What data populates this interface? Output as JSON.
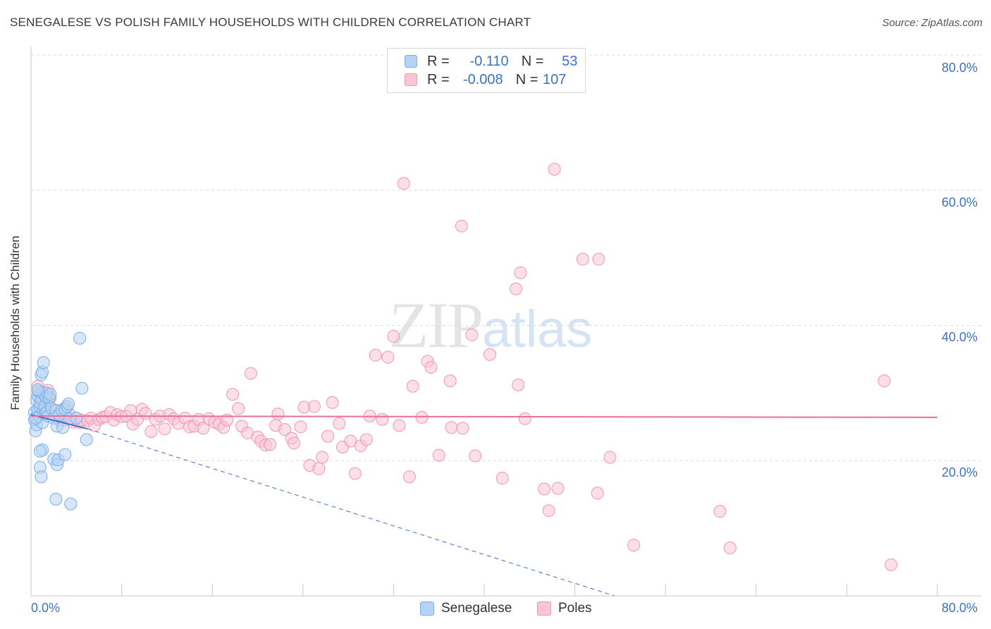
{
  "title": "SENEGALESE VS POLISH FAMILY HOUSEHOLDS WITH CHILDREN CORRELATION CHART",
  "source": "Source: ZipAtlas.com",
  "watermark": {
    "zip": "ZIP",
    "atlas": "atlas"
  },
  "legend": {
    "rows": [
      {
        "r_label": "R =",
        "r_value": "-0.110",
        "n_label": "N =",
        "n_value": "53"
      },
      {
        "r_label": "R =",
        "r_value": "-0.008",
        "n_label": "N =",
        "n_value": "107"
      }
    ]
  },
  "colors": {
    "blue": "#7aaee8",
    "blue_fill": "#b7d3f4",
    "blue_line": "#3d6fcf",
    "pink": "#f096b3",
    "pink_fill": "#f9c5d5",
    "pink_line": "#ea6f98",
    "axis_text": "#3d72c7"
  },
  "chart_data": {
    "type": "scatter",
    "title": "SENEGALESE VS POLISH FAMILY HOUSEHOLDS WITH CHILDREN CORRELATION CHART",
    "xlabel": "",
    "ylabel": "Family Households with Children",
    "xlim": [
      0,
      80
    ],
    "ylim": [
      0,
      80
    ],
    "x_tick_labels": [
      "0.0%",
      "80.0%"
    ],
    "y_tick_labels": [
      "20.0%",
      "40.0%",
      "60.0%",
      "80.0%"
    ],
    "y_ticks": [
      20,
      40,
      60,
      80
    ],
    "series": [
      {
        "name": "Senegalese",
        "r": -0.11,
        "n": 53,
        "trend": {
          "x0": 0,
          "y0": 26.8,
          "x1": 5,
          "y1": 24.7,
          "dashed_to_x": 51.5,
          "dashed_to_y": 0
        },
        "points": [
          [
            0.3,
            27.1
          ],
          [
            0.3,
            26.0
          ],
          [
            0.4,
            24.4
          ],
          [
            0.5,
            25.3
          ],
          [
            0.5,
            28.9
          ],
          [
            0.6,
            27.6
          ],
          [
            0.6,
            29.6
          ],
          [
            0.7,
            30.2
          ],
          [
            0.7,
            26.5
          ],
          [
            0.8,
            27.9
          ],
          [
            0.8,
            28.5
          ],
          [
            0.9,
            29.1
          ],
          [
            1.0,
            30.0
          ],
          [
            1.0,
            25.6
          ],
          [
            1.1,
            27.4
          ],
          [
            1.2,
            28.0
          ],
          [
            1.2,
            26.9
          ],
          [
            1.3,
            29.4
          ],
          [
            1.4,
            27.2
          ],
          [
            1.5,
            26.6
          ],
          [
            0.9,
            32.7
          ],
          [
            1.0,
            33.1
          ],
          [
            1.0,
            21.6
          ],
          [
            0.8,
            21.4
          ],
          [
            0.8,
            19.0
          ],
          [
            0.9,
            17.6
          ],
          [
            1.1,
            34.5
          ],
          [
            1.4,
            30.0
          ],
          [
            1.6,
            29.3
          ],
          [
            1.8,
            27.8
          ],
          [
            2.0,
            26.3
          ],
          [
            2.2,
            27.4
          ],
          [
            2.3,
            25.1
          ],
          [
            2.5,
            26.8
          ],
          [
            2.7,
            27.5
          ],
          [
            3.0,
            27.6
          ],
          [
            3.2,
            28.0
          ],
          [
            3.4,
            26.2
          ],
          [
            2.0,
            20.2
          ],
          [
            2.3,
            19.4
          ],
          [
            2.4,
            20.1
          ],
          [
            2.2,
            14.3
          ],
          [
            2.8,
            24.9
          ],
          [
            3.0,
            20.9
          ],
          [
            3.5,
            13.6
          ],
          [
            3.3,
            28.4
          ],
          [
            4.0,
            26.3
          ],
          [
            4.3,
            38.1
          ],
          [
            4.5,
            30.7
          ],
          [
            4.9,
            23.1
          ],
          [
            0.6,
            30.5
          ],
          [
            1.7,
            29.8
          ],
          [
            0.4,
            26.3
          ]
        ]
      },
      {
        "name": "Poles",
        "r": -0.008,
        "n": 107,
        "trend": {
          "x0": 0,
          "y0": 26.6,
          "x1": 80,
          "y1": 26.4
        },
        "points": [
          [
            0.6,
            31.0
          ],
          [
            1.0,
            29.5
          ],
          [
            1.2,
            28.3
          ],
          [
            1.5,
            30.4
          ],
          [
            1.7,
            29.3
          ],
          [
            2.0,
            27.5
          ],
          [
            2.2,
            26.6
          ],
          [
            2.5,
            26.0
          ],
          [
            2.8,
            25.9
          ],
          [
            3.0,
            27.8
          ],
          [
            3.2,
            26.2
          ],
          [
            3.5,
            26.7
          ],
          [
            3.7,
            25.7
          ],
          [
            4.0,
            26.3
          ],
          [
            4.3,
            25.6
          ],
          [
            4.5,
            26.0
          ],
          [
            5.0,
            25.9
          ],
          [
            5.3,
            26.3
          ],
          [
            5.6,
            25.2
          ],
          [
            6.0,
            26.1
          ],
          [
            6.3,
            26.4
          ],
          [
            6.6,
            26.5
          ],
          [
            7.0,
            27.1
          ],
          [
            7.3,
            26.0
          ],
          [
            7.6,
            26.8
          ],
          [
            8.0,
            26.5
          ],
          [
            8.4,
            26.6
          ],
          [
            8.8,
            27.4
          ],
          [
            9.0,
            25.4
          ],
          [
            9.4,
            26.1
          ],
          [
            9.8,
            27.6
          ],
          [
            10.1,
            27.0
          ],
          [
            10.6,
            24.3
          ],
          [
            11.0,
            26.1
          ],
          [
            11.4,
            26.6
          ],
          [
            11.8,
            24.7
          ],
          [
            12.2,
            26.8
          ],
          [
            12.6,
            26.2
          ],
          [
            13.0,
            25.5
          ],
          [
            13.6,
            26.3
          ],
          [
            14.0,
            25.0
          ],
          [
            14.4,
            25.1
          ],
          [
            14.8,
            26.1
          ],
          [
            15.2,
            24.8
          ],
          [
            15.7,
            26.2
          ],
          [
            16.2,
            25.7
          ],
          [
            16.6,
            25.4
          ],
          [
            17.0,
            24.9
          ],
          [
            17.3,
            26.0
          ],
          [
            17.8,
            29.8
          ],
          [
            18.3,
            27.7
          ],
          [
            18.6,
            25.1
          ],
          [
            19.1,
            24.1
          ],
          [
            19.4,
            32.9
          ],
          [
            20.0,
            23.5
          ],
          [
            20.3,
            22.9
          ],
          [
            20.7,
            22.3
          ],
          [
            21.1,
            22.4
          ],
          [
            21.6,
            25.2
          ],
          [
            21.8,
            26.9
          ],
          [
            22.4,
            24.6
          ],
          [
            23.0,
            23.3
          ],
          [
            23.2,
            22.6
          ],
          [
            23.8,
            25.0
          ],
          [
            24.1,
            27.9
          ],
          [
            24.6,
            19.3
          ],
          [
            25.0,
            28.0
          ],
          [
            25.4,
            18.8
          ],
          [
            25.7,
            20.5
          ],
          [
            26.2,
            23.6
          ],
          [
            26.6,
            28.6
          ],
          [
            27.2,
            25.5
          ],
          [
            27.5,
            22.0
          ],
          [
            28.2,
            22.9
          ],
          [
            28.6,
            18.1
          ],
          [
            29.1,
            22.2
          ],
          [
            29.6,
            23.1
          ],
          [
            29.9,
            26.6
          ],
          [
            30.4,
            35.6
          ],
          [
            31.0,
            26.1
          ],
          [
            31.5,
            35.3
          ],
          [
            32.0,
            38.4
          ],
          [
            32.5,
            25.2
          ],
          [
            32.9,
            61.0
          ],
          [
            33.4,
            17.6
          ],
          [
            34.5,
            26.4
          ],
          [
            35.0,
            34.7
          ],
          [
            35.3,
            33.8
          ],
          [
            36.0,
            20.8
          ],
          [
            37.0,
            31.8
          ],
          [
            38.0,
            54.7
          ],
          [
            38.9,
            38.6
          ],
          [
            39.2,
            20.7
          ],
          [
            42.8,
            45.4
          ],
          [
            43.2,
            47.8
          ],
          [
            43.6,
            26.2
          ],
          [
            45.3,
            15.8
          ],
          [
            45.7,
            12.6
          ],
          [
            46.5,
            15.9
          ],
          [
            48.7,
            49.8
          ],
          [
            50.1,
            49.8
          ],
          [
            51.1,
            20.5
          ],
          [
            53.2,
            7.5
          ],
          [
            60.8,
            12.5
          ],
          [
            61.7,
            7.1
          ],
          [
            75.3,
            31.8
          ],
          [
            75.9,
            4.6
          ]
        ]
      }
    ],
    "extra_pink_points": [
      [
        46.2,
        63.1
      ],
      [
        40.5,
        35.7
      ],
      [
        43.0,
        31.2
      ],
      [
        50.0,
        15.2
      ],
      [
        41.6,
        17.4
      ],
      [
        33.7,
        31.0
      ],
      [
        37.1,
        24.9
      ],
      [
        38.1,
        24.8
      ]
    ]
  },
  "bottom_legend": [
    "Senegalese",
    "Poles"
  ]
}
